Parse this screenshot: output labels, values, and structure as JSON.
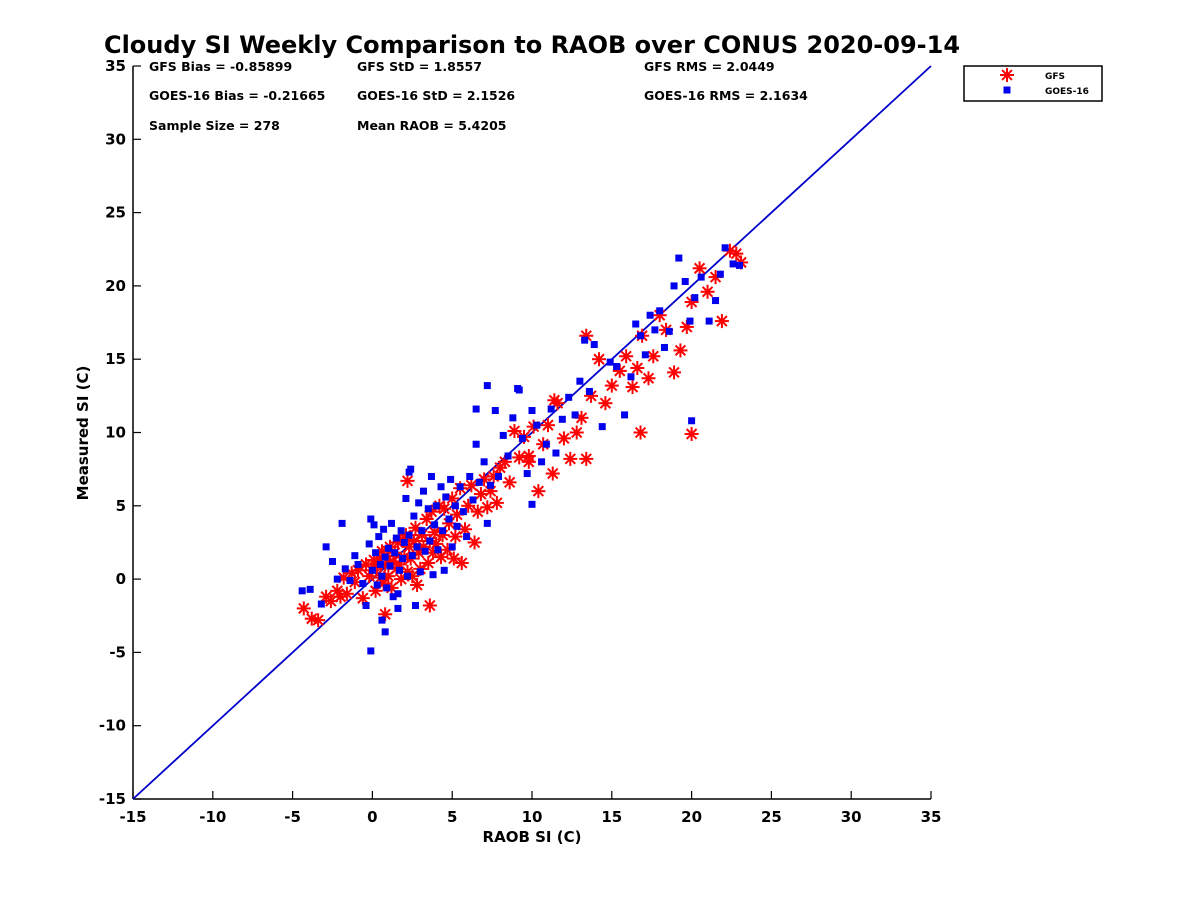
{
  "chart_data": {
    "type": "scatter",
    "title": "Cloudy SI Weekly Comparison to RAOB over CONUS 2020-09-14",
    "xlabel": "RAOB SI (C)",
    "ylabel": "Measured SI (C)",
    "xlim": [
      -15,
      35
    ],
    "ylim": [
      -15,
      35
    ],
    "xticks": [
      -15,
      -10,
      -5,
      0,
      5,
      10,
      15,
      20,
      25,
      30,
      35
    ],
    "yticks": [
      -15,
      -10,
      -5,
      0,
      5,
      10,
      15,
      20,
      25,
      30,
      35
    ],
    "grid": false,
    "legend_position": "outside top-right",
    "reference_line": {
      "from": [
        -15,
        -15
      ],
      "to": [
        35,
        35
      ],
      "color": "#0000cc"
    },
    "stats": {
      "gfs_bias": "GFS Bias = -0.85899",
      "gfs_std": "GFS StD = 1.8557",
      "gfs_rms": "GFS RMS = 2.0449",
      "goes_bias": "GOES-16 Bias = -0.21665",
      "goes_std": "GOES-16 StD = 2.1526",
      "goes_rms": "GOES-16 RMS = 2.1634",
      "sample_size": "Sample Size = 278",
      "mean_raob": "Mean RAOB = 5.4205"
    },
    "series": [
      {
        "name": "GFS",
        "marker": "asterisk",
        "color": "#ff0000",
        "x": [
          -4.3,
          -3.8,
          -3.4,
          -2.9,
          -2.6,
          -2.2,
          -2.0,
          -1.8,
          -1.6,
          -1.3,
          -1.1,
          -0.9,
          -0.6,
          -0.4,
          -0.2,
          0.0,
          0.1,
          0.2,
          0.3,
          0.4,
          0.5,
          0.6,
          0.7,
          0.8,
          0.9,
          1.0,
          1.1,
          1.2,
          1.3,
          1.4,
          1.5,
          1.6,
          1.7,
          1.8,
          1.9,
          2.0,
          2.1,
          2.2,
          2.3,
          2.4,
          2.5,
          2.6,
          2.7,
          2.8,
          2.9,
          3.0,
          3.1,
          3.2,
          3.4,
          3.5,
          3.6,
          3.7,
          3.8,
          3.9,
          4.0,
          4.2,
          4.3,
          4.4,
          4.5,
          4.7,
          4.8,
          5.0,
          5.1,
          5.2,
          5.3,
          5.5,
          5.6,
          5.8,
          6.0,
          6.2,
          6.4,
          6.6,
          6.8,
          7.0,
          7.2,
          7.4,
          7.6,
          7.8,
          8.0,
          8.3,
          8.6,
          8.9,
          9.2,
          9.5,
          9.8,
          10.1,
          10.4,
          10.7,
          11.0,
          11.3,
          11.6,
          12.0,
          12.4,
          12.8,
          13.1,
          13.4,
          13.7,
          14.2,
          14.6,
          15.0,
          15.5,
          15.9,
          16.3,
          16.6,
          16.9,
          17.3,
          17.6,
          18.0,
          18.4,
          18.9,
          19.3,
          19.7,
          20.0,
          20.5,
          21.0,
          21.5,
          21.9,
          22.4,
          22.8,
          23.1,
          2.2,
          3.6,
          0.8,
          11.4,
          9.8,
          13.4,
          16.8,
          20.0
        ],
        "y": [
          -2.0,
          -2.7,
          -2.8,
          -1.2,
          -1.5,
          -0.8,
          -1.2,
          0.1,
          -1.0,
          0.4,
          -0.2,
          0.6,
          -1.3,
          1.0,
          0.2,
          0.6,
          1.3,
          -0.8,
          0.9,
          1.4,
          0.1,
          1.9,
          -0.3,
          1.0,
          1.6,
          0.2,
          2.2,
          -0.6,
          1.2,
          1.8,
          0.7,
          2.5,
          1.0,
          0.0,
          2.7,
          1.5,
          3.0,
          0.5,
          2.2,
          1.4,
          0.2,
          2.6,
          3.5,
          -0.4,
          1.8,
          0.7,
          3.0,
          2.2,
          4.1,
          1.1,
          2.6,
          4.6,
          1.8,
          3.2,
          2.4,
          5.0,
          1.5,
          3.0,
          4.8,
          2.0,
          3.8,
          5.5,
          1.4,
          2.9,
          4.4,
          6.2,
          1.1,
          3.4,
          5.0,
          6.4,
          2.5,
          4.6,
          5.8,
          6.8,
          4.9,
          6.0,
          7.0,
          5.2,
          7.6,
          8.0,
          6.6,
          10.1,
          8.3,
          9.7,
          8.0,
          10.4,
          6.0,
          9.2,
          10.5,
          7.2,
          12.0,
          9.6,
          8.2,
          10.0,
          11.0,
          8.2,
          12.5,
          15.0,
          12.0,
          13.2,
          14.2,
          15.2,
          13.1,
          14.4,
          16.6,
          13.7,
          15.2,
          18.0,
          17.0,
          14.1,
          15.6,
          17.2,
          18.9,
          21.2,
          19.6,
          20.6,
          17.6,
          22.4,
          22.2,
          21.6,
          6.7,
          -1.8,
          -2.4,
          12.2,
          8.4,
          16.6,
          10.0,
          9.9
        ]
      },
      {
        "name": "GOES-16",
        "marker": "square",
        "color": "#0000ee",
        "x": [
          -4.4,
          -3.9,
          -3.2,
          -2.9,
          -2.5,
          -2.2,
          -1.9,
          -1.7,
          -1.4,
          -1.1,
          -0.9,
          -0.6,
          -0.4,
          -0.2,
          -0.1,
          0.0,
          0.1,
          0.2,
          0.3,
          0.4,
          0.5,
          0.6,
          0.7,
          0.8,
          0.9,
          1.0,
          1.1,
          1.2,
          1.3,
          1.4,
          1.5,
          1.6,
          1.7,
          1.8,
          1.9,
          2.0,
          2.1,
          2.2,
          2.3,
          2.4,
          2.5,
          2.6,
          2.7,
          2.8,
          2.9,
          3.0,
          3.1,
          3.2,
          3.3,
          3.5,
          3.6,
          3.7,
          3.8,
          3.9,
          4.0,
          4.1,
          4.3,
          4.4,
          4.5,
          4.6,
          4.8,
          4.9,
          5.0,
          5.2,
          5.3,
          5.5,
          5.7,
          5.9,
          6.1,
          6.3,
          6.5,
          6.7,
          7.0,
          7.2,
          7.4,
          7.7,
          7.9,
          8.2,
          8.5,
          8.8,
          9.1,
          9.4,
          9.7,
          10.0,
          10.3,
          10.6,
          10.9,
          11.2,
          11.5,
          11.9,
          12.3,
          12.7,
          13.0,
          13.3,
          13.6,
          13.9,
          14.4,
          14.9,
          15.3,
          15.8,
          16.2,
          16.5,
          16.8,
          17.1,
          17.4,
          17.7,
          18.0,
          18.3,
          18.6,
          18.9,
          19.2,
          19.6,
          19.9,
          20.2,
          20.6,
          21.1,
          21.5,
          21.8,
          22.1,
          22.6,
          23.0,
          2.3,
          0.8,
          -0.1,
          0.6,
          1.6,
          2.7,
          7.2,
          9.2,
          6.5,
          10.0,
          20.0
        ],
        "y": [
          -0.8,
          -0.7,
          -1.7,
          2.2,
          1.2,
          0.0,
          3.8,
          0.7,
          -0.1,
          1.6,
          1.0,
          -0.3,
          -1.8,
          2.4,
          4.1,
          0.6,
          3.7,
          1.8,
          -0.4,
          2.9,
          1.0,
          0.2,
          3.4,
          1.5,
          -0.6,
          2.1,
          0.9,
          3.8,
          -1.2,
          1.8,
          2.8,
          -2.0,
          0.6,
          3.3,
          1.4,
          2.5,
          5.5,
          0.2,
          3.0,
          7.5,
          1.6,
          4.3,
          -1.8,
          2.2,
          5.2,
          0.5,
          3.3,
          6.0,
          1.9,
          4.8,
          2.6,
          7.0,
          0.3,
          3.7,
          5.0,
          2.0,
          6.3,
          3.3,
          0.6,
          5.6,
          4.1,
          6.8,
          2.2,
          5.0,
          3.6,
          6.3,
          4.6,
          2.9,
          7.0,
          5.4,
          9.2,
          6.6,
          8.0,
          3.8,
          6.4,
          11.5,
          7.0,
          9.8,
          8.4,
          11.0,
          13.0,
          9.6,
          7.2,
          11.5,
          10.5,
          8.0,
          9.2,
          11.6,
          8.6,
          10.9,
          12.4,
          11.2,
          13.5,
          16.3,
          12.8,
          16.0,
          10.4,
          14.8,
          14.5,
          11.2,
          13.8,
          17.4,
          16.6,
          15.3,
          18.0,
          17.0,
          18.3,
          15.8,
          16.9,
          20.0,
          21.9,
          20.3,
          17.6,
          19.2,
          20.6,
          17.6,
          19.0,
          20.8,
          22.6,
          21.5,
          21.4,
          7.3,
          -3.6,
          -4.9,
          -2.8,
          -1.0,
          -1.8,
          13.2,
          12.9,
          11.6,
          5.1,
          10.8
        ]
      }
    ]
  }
}
